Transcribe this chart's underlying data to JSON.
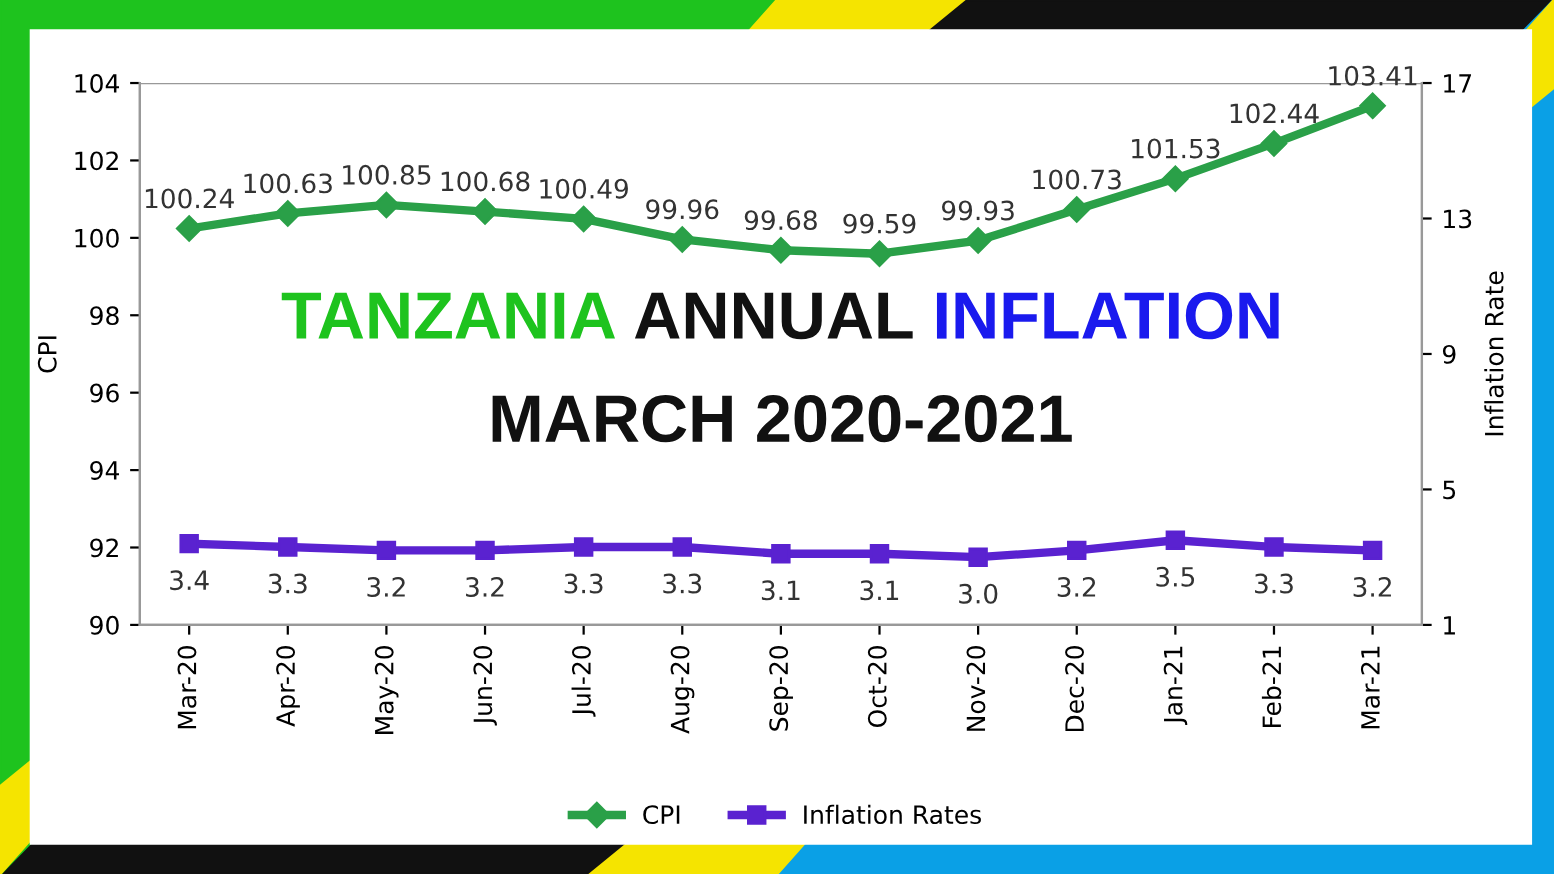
{
  "chart_data": {
    "type": "line",
    "title": "TANZANIA ANNUAL INFLATION",
    "subtitle": "MARCH 2020-2021",
    "ylabel": "CPI",
    "y2label": "Inflation Rate",
    "categories": [
      "Mar-20",
      "Apr-20",
      "May-20",
      "Jun-20",
      "Jul-20",
      "Aug-20",
      "Sep-20",
      "Oct-20",
      "Nov-20",
      "Dec-20",
      "Jan-21",
      "Feb-21",
      "Mar-21"
    ],
    "series": [
      {
        "name": "CPI",
        "color": "#2aa048",
        "marker": "diamond",
        "values": [
          100.24,
          100.63,
          100.85,
          100.68,
          100.49,
          99.96,
          99.68,
          99.59,
          99.93,
          100.73,
          101.53,
          102.44,
          103.41
        ]
      },
      {
        "name": "Inflation Rates",
        "color": "#5a22d0",
        "marker": "square",
        "axis": "y2",
        "values": [
          3.4,
          3.3,
          3.2,
          3.2,
          3.3,
          3.3,
          3.1,
          3.1,
          3.0,
          3.2,
          3.5,
          3.3,
          3.2
        ],
        "value_labels": [
          "3.4",
          "3.3",
          "3.2",
          "3.2",
          "3.3",
          "3.3",
          "3.1",
          "3.1",
          "3.0",
          "3.2",
          "3.5",
          "3.3",
          "3.2"
        ]
      }
    ],
    "ylim": [
      90,
      104
    ],
    "yticks": [
      90,
      92,
      94,
      96,
      98,
      100,
      102,
      104
    ],
    "y2lim": [
      1,
      17
    ],
    "y2ticks": [
      1,
      5,
      9,
      13,
      17
    ],
    "data_labels": true,
    "legend": "bottom"
  }
}
